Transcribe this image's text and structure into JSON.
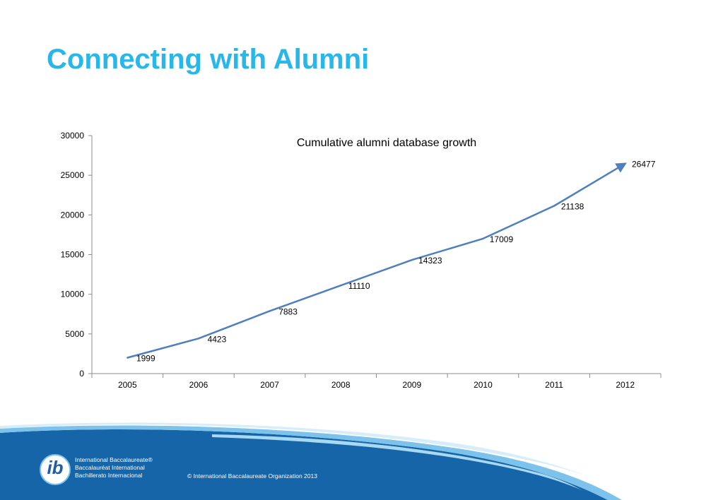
{
  "slide": {
    "title": "Connecting with Alumni"
  },
  "footer": {
    "org_names": [
      "International Baccalaureate®",
      "Baccalauréat International",
      "Bachillerato Internacional"
    ],
    "logo_text": "ib",
    "copyright": "© International Baccalaureate Organization 2013"
  },
  "colors": {
    "title": "#29b6e8",
    "line": "#4f7fbf",
    "footer": "#1565a8"
  },
  "chart_data": {
    "type": "line",
    "title": "Cumulative alumni database growth",
    "xlabel": "",
    "ylabel": "",
    "categories": [
      "2005",
      "2006",
      "2007",
      "2008",
      "2009",
      "2010",
      "2011",
      "2012"
    ],
    "series": [
      {
        "values": [
          1999,
          4423,
          7883,
          11110,
          14323,
          17009,
          21138,
          26477
        ]
      }
    ],
    "data_labels": [
      "1999",
      "4423",
      "7883",
      "11110",
      "14323",
      "17009",
      "21138",
      "26477"
    ],
    "yticks": [
      "0",
      "5000",
      "10000",
      "15000",
      "20000",
      "25000",
      "30000"
    ],
    "ylim": [
      0,
      30000
    ],
    "grid": false,
    "legend": "none",
    "line_end": "arrow"
  }
}
